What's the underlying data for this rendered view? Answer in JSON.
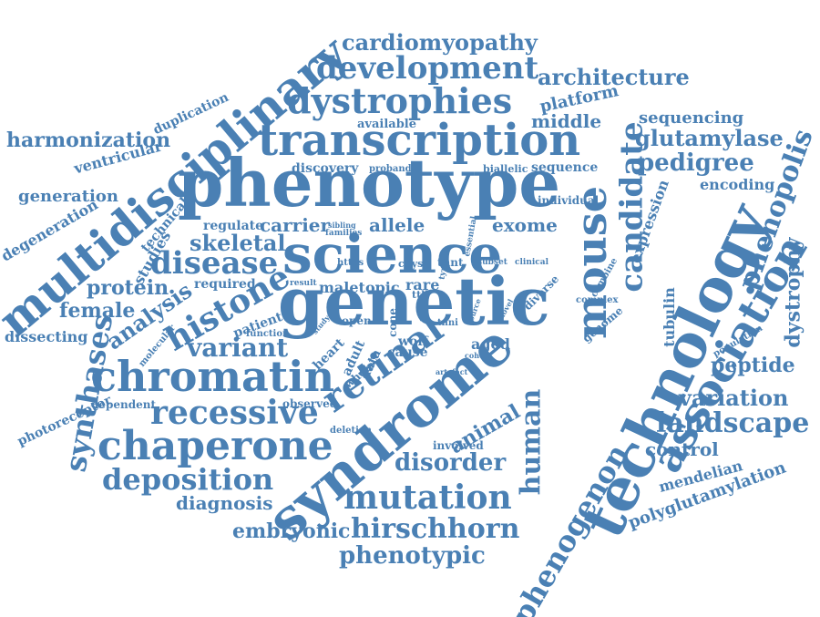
{
  "color": "#4a80b4",
  "words": [
    "phenotype",
    "genetic",
    "science",
    "syndrome",
    "technology",
    "multidisciplinary",
    "transcription",
    "chromatin",
    "association",
    "mouse",
    "chaperone",
    "dystrophies",
    "recessive",
    "development",
    "retinal",
    "mutation",
    "hirschhorn",
    "candidate",
    "disease",
    "histone",
    "variant",
    "deposition",
    "synthases",
    "phenogenon",
    "phenopolis",
    "cardiomyopathy",
    "architecture",
    "pedigree",
    "glutamylase",
    "landscape",
    "variation",
    "phenotypic",
    "human",
    "skeletal",
    "disorder",
    "sequencing",
    "harmonization",
    "dystrophy",
    "polyglutamylation",
    "embryonic",
    "peptide",
    "analysis",
    "protein",
    "female",
    "control",
    "tubulin",
    "diagnosis",
    "middle",
    "platform",
    "generation",
    "ventricular",
    "animal",
    "exome",
    "allele",
    "carrier",
    "regulate",
    "degeneration",
    "dissecting",
    "photoreceptor",
    "mendelian",
    "encoding",
    "expression",
    "studies",
    "technical",
    "duplication",
    "discovery",
    "sequence",
    "individual",
    "biallelic",
    "proband",
    "available",
    "required",
    "patient",
    "maletopic",
    "rare",
    "cnys",
    "https",
    "open",
    "cause",
    "wolf",
    "adult",
    "data",
    "heart",
    "whole",
    "aged",
    "cone",
    "tnni",
    "deletion",
    "involved",
    "observed",
    "dependent",
    "molecular",
    "function",
    "genome",
    "complex",
    "population",
    "combine",
    "diverse",
    "subset",
    "clinical",
    "essential",
    "sibling",
    "families",
    "study",
    "tnnt",
    "ttll",
    "cohort",
    "artefact",
    "source",
    "result",
    "type",
    "novel"
  ]
}
